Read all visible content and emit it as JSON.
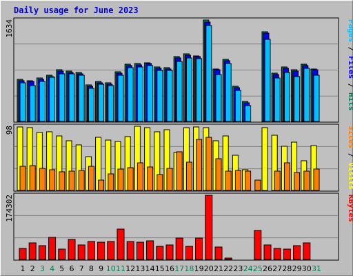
{
  "chart_data": {
    "type": "bar",
    "title": "Daily usage for June 2023",
    "days": [
      1,
      2,
      3,
      4,
      5,
      6,
      7,
      8,
      9,
      10,
      11,
      12,
      13,
      14,
      15,
      16,
      17,
      18,
      19,
      20,
      21,
      22,
      23,
      24,
      25,
      26,
      27,
      28,
      29,
      30,
      31
    ],
    "weekend_days": [
      3,
      4,
      10,
      11,
      17,
      18,
      24,
      25,
      31
    ],
    "colors": {
      "hits": "#00805c",
      "files": "#0000ff",
      "pages": "#00c0ff",
      "visits": "#ffff00",
      "sites": "#ff8000",
      "kbytes": "#ff0000",
      "weekend_day_label": "#00805c",
      "weekday_label": "#000000"
    },
    "panels": [
      {
        "id": "hits-files-pages",
        "ymax_label": "1634",
        "ymax": 1634,
        "right_label": [
          {
            "text": "Pages",
            "color": "#00c0ff"
          },
          {
            "text": " / ",
            "color": "#000000"
          },
          {
            "text": "Files",
            "color": "#0000ff"
          },
          {
            "text": " / ",
            "color": "#000000"
          },
          {
            "text": "Hits",
            "color": "#00805c"
          }
        ],
        "series": [
          {
            "name": "Hits",
            "values": [
              680,
              660,
              700,
              740,
              830,
              810,
              790,
              590,
              640,
              620,
              800,
              920,
              930,
              950,
              880,
              870,
              1040,
              1090,
              1060,
              1634,
              850,
              1000,
              570,
              320,
              0,
              1440,
              780,
              880,
              830,
              920,
              850
            ]
          },
          {
            "name": "Files",
            "values": [
              660,
              640,
              680,
              720,
              810,
              790,
              770,
              570,
              620,
              600,
              780,
              900,
              910,
              930,
              860,
              850,
              1020,
              1070,
              1040,
              1600,
              830,
              980,
              550,
              300,
              0,
              1420,
              760,
              860,
              810,
              900,
              830
            ]
          },
          {
            "name": "Pages",
            "values": [
              620,
              580,
              650,
              710,
              770,
              770,
              750,
              530,
              600,
              580,
              750,
              870,
              880,
              900,
              820,
              820,
              970,
              1020,
              1010,
              1550,
              760,
              930,
              500,
              260,
              0,
              1320,
              700,
              790,
              720,
              860,
              740
            ]
          }
        ]
      },
      {
        "id": "visits-sites",
        "ymax_label": "98",
        "ymax": 98,
        "right_label": [
          {
            "text": "Sites",
            "color": "#ff8000"
          },
          {
            "text": " / ",
            "color": "#000000"
          },
          {
            "text": "Visits",
            "color": "#ffff00"
          }
        ],
        "series": [
          {
            "name": "Visits",
            "values": [
              97,
              96,
              88,
              90,
              83,
              76,
              70,
              52,
              81,
              77,
              75,
              82,
              98,
              96,
              90,
              93,
              58,
              96,
              97,
              96,
              76,
              83,
              54,
              32,
              0,
              96,
              84,
              67,
              74,
              45,
              68
            ]
          },
          {
            "name": "Sites",
            "values": [
              37,
              38,
              34,
              32,
              28,
              29,
              31,
              37,
              16,
              25,
              33,
              35,
              42,
              36,
              24,
              34,
              59,
              43,
              78,
              81,
              48,
              30,
              31,
              30,
              16,
              0,
              29,
              42,
              27,
              30,
              33
            ]
          }
        ]
      },
      {
        "id": "kbytes",
        "ymax_label": "174302",
        "ymax": 174302,
        "right_label": [
          {
            "text": "KBytes",
            "color": "#ff0000"
          }
        ],
        "series": [
          {
            "name": "KBytes",
            "values": [
              30000,
              45000,
              38000,
              60000,
              28000,
              55000,
              40000,
              48000,
              47000,
              48000,
              82000,
              48000,
              47000,
              50000,
              35000,
              40000,
              58000,
              35000,
              58000,
              174302,
              34000,
              4000,
              0,
              0,
              78000,
              39000,
              30000,
              28000,
              38000,
              45000,
              0
            ]
          }
        ]
      }
    ]
  }
}
